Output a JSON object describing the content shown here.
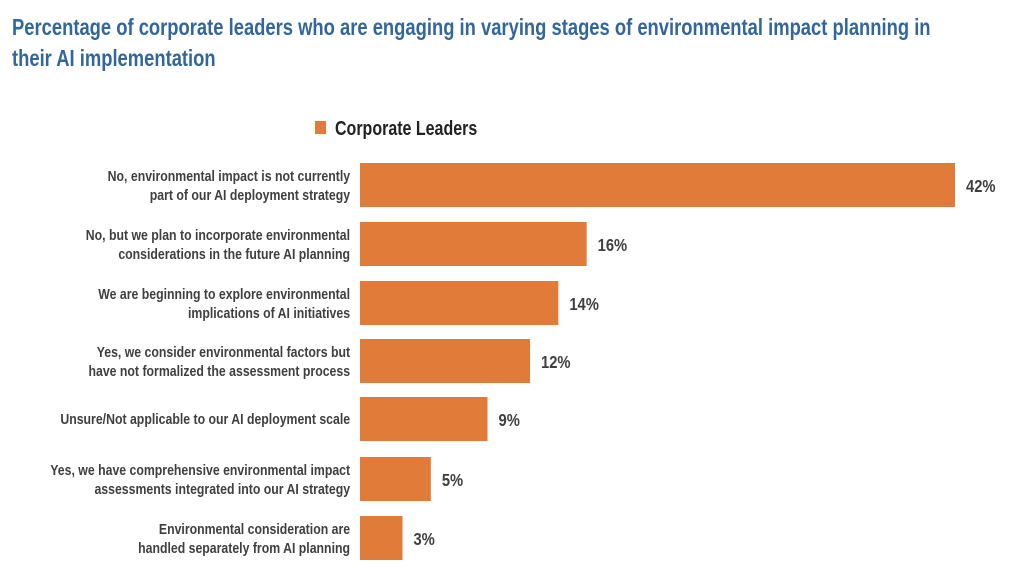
{
  "chart_data": {
    "type": "bar",
    "orientation": "horizontal",
    "title": "Percentage of corporate leaders who are engaging in varying stages of environmental impact planning in their AI implementation",
    "title_lines": [
      "Percentage of corporate leaders who are engaging in varying stages of environmental impact planning in",
      "their AI implementation"
    ],
    "categories": [
      [
        "No, environmental impact is not currently",
        "part of our AI deployment strategy"
      ],
      [
        "No, but we plan to incorporate environmental",
        "considerations in the future AI planning"
      ],
      [
        "We are beginning to explore environmental",
        "implications of AI initiatives"
      ],
      [
        "Yes, we consider environmental factors but",
        "have not formalized the assessment process"
      ],
      [
        "Unsure/Not applicable to our AI deployment scale"
      ],
      [
        "Yes, we have comprehensive environmental impact",
        "assessments integrated into our AI strategy"
      ],
      [
        "Environmental consideration are",
        "handled separately from AI planning"
      ]
    ],
    "series": [
      {
        "name": "Corporate Leaders",
        "values": [
          42,
          16,
          14,
          12,
          9,
          5,
          3
        ],
        "color": "#e07b39"
      }
    ],
    "value_labels": [
      "42%",
      "16%",
      "14%",
      "12%",
      "9%",
      "5%",
      "3%"
    ],
    "xlabel": "",
    "ylabel": "",
    "xlim": [
      0,
      42
    ],
    "grid": false,
    "legend": "top-center"
  }
}
